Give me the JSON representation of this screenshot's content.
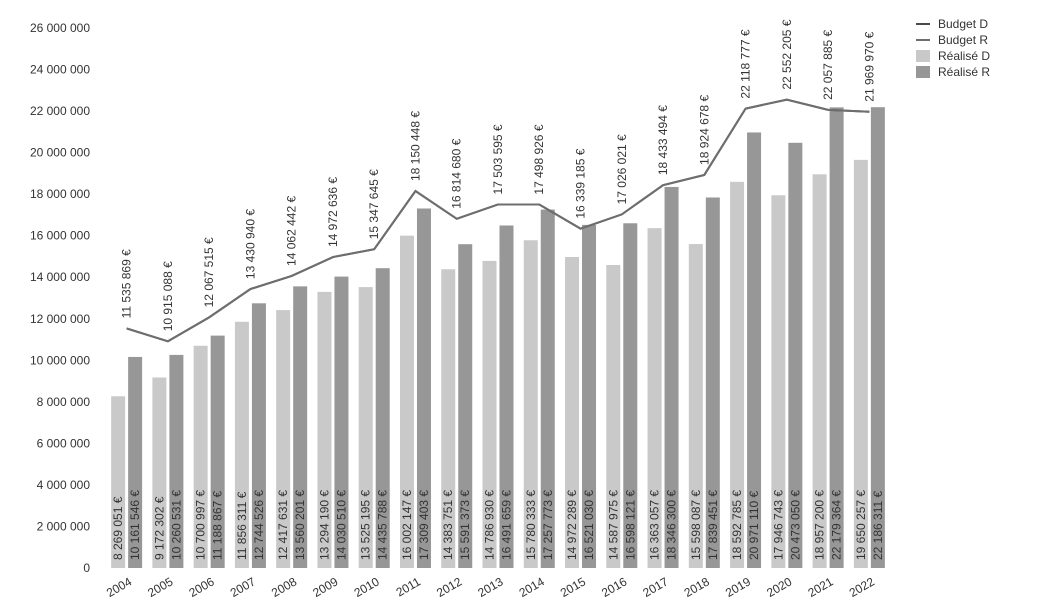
{
  "chart_data": {
    "type": "bar",
    "categories": [
      "2004",
      "2005",
      "2006",
      "2007",
      "2008",
      "2009",
      "2010",
      "2011",
      "2012",
      "2013",
      "2014",
      "2015",
      "2016",
      "2017",
      "2018",
      "2019",
      "2020",
      "2021",
      "2022"
    ],
    "series": [
      {
        "name": "Budget D",
        "type": "line",
        "color": "#4a4a4a",
        "values": [
          11535869,
          10915088,
          12067515,
          13430940,
          14062442,
          14972636,
          15347645,
          18150448,
          16814680,
          17503595,
          17498926,
          16339185,
          17026021,
          18433494,
          18924678,
          22118777,
          22552205,
          22057885,
          21969970
        ],
        "value_labels": [
          "11 535 869 €",
          "10 915 088 €",
          "12 067 515 €",
          "13 430 940 €",
          "14 062 442 €",
          "14 972 636 €",
          "15 347 645 €",
          "18 150 448 €",
          "16 814 680 €",
          "17 503 595 €",
          "17 498 926 €",
          "16 339 185 €",
          "17 026 021 €",
          "18 433 494 €",
          "18 924 678 €",
          "22 118 777 €",
          "22 552 205 €",
          "22 057 885 €",
          "21 969 970 €"
        ]
      },
      {
        "name": "Budget R",
        "type": "line",
        "color": "#6e6e6e",
        "values": [
          11535869,
          10915088,
          12067515,
          13430940,
          14062442,
          14972636,
          15347645,
          18150448,
          16814680,
          17503595,
          17498926,
          16339185,
          17026021,
          18433494,
          18924678,
          22118777,
          22552205,
          22057885,
          21969970
        ]
      },
      {
        "name": "Réalisé D",
        "type": "bar",
        "color": "#c9c9c9",
        "values": [
          8269051,
          9172302,
          10700997,
          11856311,
          12417631,
          13294190,
          13525195,
          16002147,
          14383751,
          14786930,
          15780333,
          14972289,
          14587975,
          16363057,
          15598087,
          18592785,
          17946743,
          18957200,
          19650257
        ],
        "value_labels": [
          "8 269 051 €",
          "9 172 302 €",
          "10 700 997 €",
          "11 856 311 €",
          "12 417 631 €",
          "13 294 190 €",
          "13 525 195 €",
          "16 002 147 €",
          "14 383 751 €",
          "14 786 930 €",
          "15 780 333 €",
          "14 972 289 €",
          "14 587 975 €",
          "16 363 057 €",
          "15 598 087 €",
          "18 592 785 €",
          "17 946 743 €",
          "18 957 200 €",
          "19 650 257 €"
        ]
      },
      {
        "name": "Réalisé R",
        "type": "bar",
        "color": "#979797",
        "values": [
          10161546,
          10260531,
          11188867,
          12744526,
          13560201,
          14030510,
          14435788,
          17309403,
          15591373,
          16491659,
          17257773,
          16521030,
          16598121,
          18346300,
          17839451,
          20971110,
          20473050,
          22179364,
          22186311
        ],
        "value_labels": [
          "10 161 546 €",
          "10 260 531 €",
          "11 188 867 €",
          "12 744 526 €",
          "13 560 201 €",
          "14 030 510 €",
          "14 435 788 €",
          "17 309 403 €",
          "15 591 373 €",
          "16 491 659 €",
          "17 257 773 €",
          "16 521 030 €",
          "16 598 121 €",
          "18 346 300 €",
          "17 839 451 €",
          "20 971 110 €",
          "20 473 050 €",
          "22 179 364 €",
          "22 186 311 €"
        ]
      }
    ],
    "ylim": [
      0,
      26000000
    ],
    "yticks": [
      0,
      {
        "value": 2000000,
        "label": "2 000 000"
      },
      {
        "value": 4000000,
        "label": "4 000 000"
      },
      {
        "value": 6000000,
        "label": "6 000 000"
      },
      {
        "value": 8000000,
        "label": "8 000 000"
      },
      {
        "value": 10000000,
        "label": "10 000 000"
      },
      {
        "value": 12000000,
        "label": "12 000 000"
      },
      {
        "value": 14000000,
        "label": "14 000 000"
      },
      {
        "value": 16000000,
        "label": "16 000 000"
      },
      {
        "value": 18000000,
        "label": "18 000 000"
      },
      {
        "value": 20000000,
        "label": "20 000 000"
      },
      {
        "value": 22000000,
        "label": "22 000 000"
      },
      {
        "value": 24000000,
        "label": "24 000 000"
      },
      {
        "value": 26000000,
        "label": "26 000 000"
      }
    ],
    "legend": "top-right"
  }
}
